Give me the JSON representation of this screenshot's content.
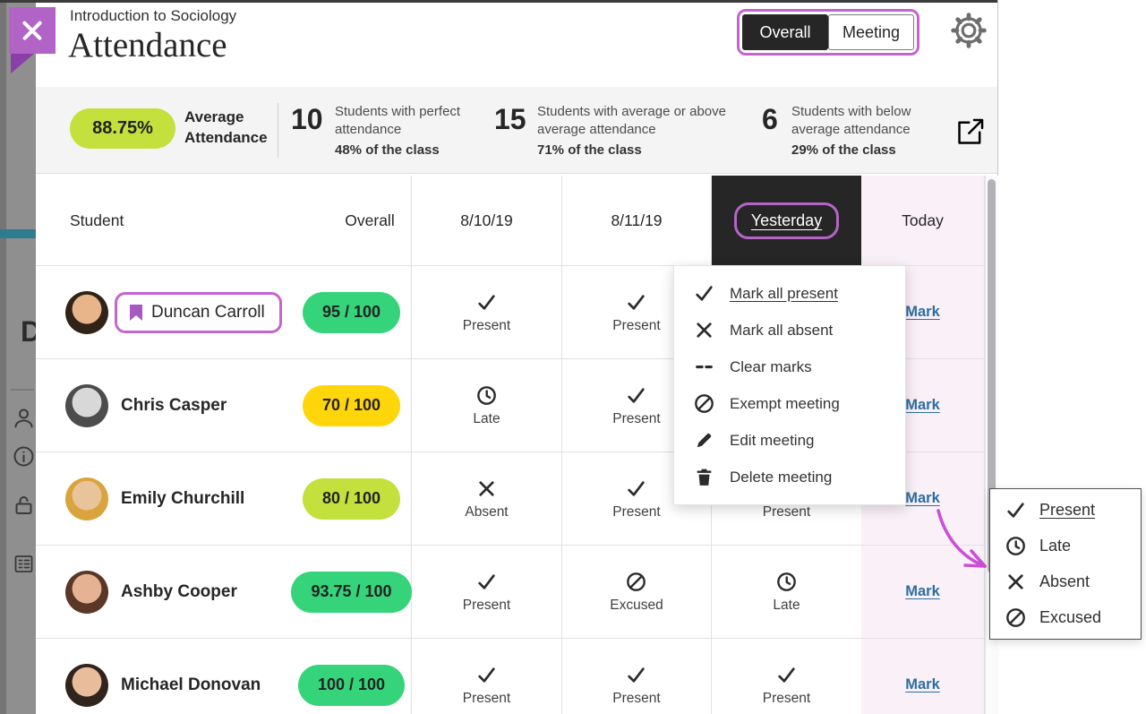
{
  "colors": {
    "accent_purple": "#c465cf",
    "close_purple": "#b164c6",
    "dark": "#262626",
    "link_blue": "#2d6da3",
    "score_green": "#35d47a",
    "score_lime": "#c3e03c",
    "score_yellow": "#ffd60a",
    "today_column_bg": "#faf1f8",
    "stats_bar_bg": "#f5f4f5",
    "arrow_pink": "#cb4fd6"
  },
  "panel_header": {
    "breadcrumb": "Introduction to Sociology",
    "title": "Attendance",
    "view_toggle": {
      "options": [
        "Overall",
        "Meeting"
      ],
      "selected": "Overall"
    },
    "settings_icon": "gear-icon"
  },
  "stats_bar": {
    "average": {
      "value": "88.75%",
      "label": "Average Attendance",
      "pill_color": "#c3e03c"
    },
    "stats": [
      {
        "number": "10",
        "description": "Students with perfect attendance",
        "share": "48% of the class"
      },
      {
        "number": "15",
        "description": "Students with average or above average attendance",
        "share": "71% of the class"
      },
      {
        "number": "6",
        "description": "Students with below average attendance",
        "share": "29% of the class"
      }
    ],
    "export_icon": "export-icon"
  },
  "table": {
    "columns": [
      "Student",
      "Overall",
      "8/10/19",
      "8/11/19",
      "Yesterday",
      "Today"
    ],
    "selected_column": "Yesterday",
    "status_icons": {
      "Present": "check",
      "Late": "clock",
      "Absent": "x",
      "Excused": "slash-circle"
    },
    "rows": [
      {
        "name": "Duncan Carroll",
        "bookmarked": true,
        "score": "95 / 100",
        "score_color": "green",
        "marks": [
          "Present",
          "Present",
          null
        ],
        "today_action": "Mark",
        "avatar": {
          "skin": "#e8b58a",
          "hair": "#2f2417"
        }
      },
      {
        "name": "Chris Casper",
        "bookmarked": false,
        "score": "70 / 100",
        "score_color": "yellow",
        "marks": [
          "Late",
          "Present",
          null
        ],
        "today_action": "Mark",
        "avatar": {
          "skin": "#d8d8d8",
          "hair": "#4c4c4c"
        }
      },
      {
        "name": "Emily Churchill",
        "bookmarked": false,
        "score": "80 / 100",
        "score_color": "lime",
        "marks": [
          "Absent",
          "Present",
          "Present"
        ],
        "today_action": "Mark",
        "avatar": {
          "skin": "#e9c39a",
          "hair": "#d9a43e"
        }
      },
      {
        "name": "Ashby Cooper",
        "bookmarked": false,
        "score": "93.75 / 100",
        "score_color": "green",
        "marks": [
          "Present",
          "Excused",
          "Late"
        ],
        "today_action": "Mark",
        "avatar": {
          "skin": "#e5b294",
          "hair": "#5a3726"
        }
      },
      {
        "name": "Michael Donovan",
        "bookmarked": false,
        "score": "100 / 100",
        "score_color": "green",
        "marks": [
          "Present",
          "Present",
          "Present"
        ],
        "today_action": "Mark",
        "avatar": {
          "skin": "#e7bd9b",
          "hair": "#30241c"
        }
      }
    ]
  },
  "meeting_menu": {
    "items": [
      {
        "icon": "check",
        "label": "Mark all present",
        "underlined": true
      },
      {
        "icon": "x",
        "label": "Mark all absent",
        "underlined": false
      },
      {
        "icon": "dashes",
        "label": "Clear marks",
        "underlined": false
      },
      {
        "icon": "slash-circle",
        "label": "Exempt meeting",
        "underlined": false
      },
      {
        "icon": "pencil",
        "label": "Edit meeting",
        "underlined": false
      },
      {
        "icon": "trash",
        "label": "Delete meeting",
        "underlined": false
      }
    ]
  },
  "mark_popup": {
    "items": [
      {
        "icon": "check",
        "label": "Present",
        "underlined": true
      },
      {
        "icon": "clock",
        "label": "Late",
        "underlined": false
      },
      {
        "icon": "x",
        "label": "Absent",
        "underlined": false
      },
      {
        "icon": "slash-circle",
        "label": "Excused",
        "underlined": false
      }
    ]
  },
  "background_page": {
    "heading_letter": "D",
    "icons": [
      "person",
      "info",
      "lock",
      "journal"
    ]
  }
}
